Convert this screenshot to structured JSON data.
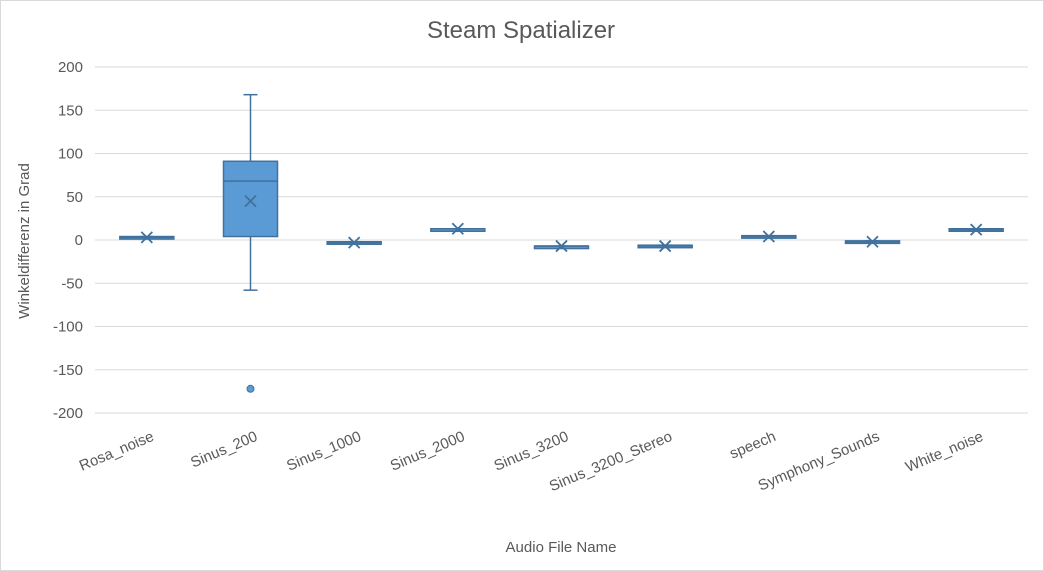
{
  "chart_data": {
    "type": "box",
    "title": "Steam Spatializer",
    "xlabel": "Audio File Name",
    "ylabel": "Winkeldifferenz in Grad",
    "ylim": [
      -200,
      200
    ],
    "yticks": [
      200,
      150,
      100,
      50,
      0,
      -50,
      -100,
      -150,
      -200
    ],
    "ytick_labels": [
      "200",
      "150",
      "100",
      "50",
      "0",
      "-50",
      "-100",
      "-150",
      "-200"
    ],
    "grid": true,
    "colors": {
      "fill": "#5b9bd5",
      "stroke": "#41719c",
      "grid": "#d9d9d9",
      "text": "#595959"
    },
    "categories": [
      "Rosa_noise",
      "Sinus_200",
      "Sinus_1000",
      "Sinus_2000",
      "Sinus_3200",
      "Sinus_3200_Stereo",
      "speech",
      "Symphony_Sounds",
      "White_noise"
    ],
    "boxes": [
      {
        "min": 2,
        "q1": 2,
        "median": 3,
        "q3": 4,
        "max": 4,
        "mean": 3,
        "outliers": []
      },
      {
        "min": -58,
        "q1": 4,
        "median": 68,
        "q3": 91,
        "max": 168,
        "mean": 45,
        "outliers": [
          -172
        ]
      },
      {
        "min": -4,
        "q1": -4,
        "median": -3,
        "q3": -2,
        "max": -2,
        "mean": -3,
        "outliers": []
      },
      {
        "min": 12,
        "q1": 12,
        "median": 13,
        "q3": 13,
        "max": 13,
        "mean": 13,
        "outliers": []
      },
      {
        "min": -8,
        "q1": -8,
        "median": -7,
        "q3": -7,
        "max": -7,
        "mean": -7,
        "outliers": []
      },
      {
        "min": -8,
        "q1": -8,
        "median": -7,
        "q3": -6,
        "max": -6,
        "mean": -7,
        "outliers": []
      },
      {
        "min": 3,
        "q1": 3,
        "median": 4,
        "q3": 5,
        "max": 5,
        "mean": 4,
        "outliers": []
      },
      {
        "min": -3,
        "q1": -3,
        "median": -2,
        "q3": -1,
        "max": -1,
        "mean": -2,
        "outliers": []
      },
      {
        "min": 11,
        "q1": 11,
        "median": 12,
        "q3": 13,
        "max": 13,
        "mean": 12,
        "outliers": []
      }
    ]
  }
}
